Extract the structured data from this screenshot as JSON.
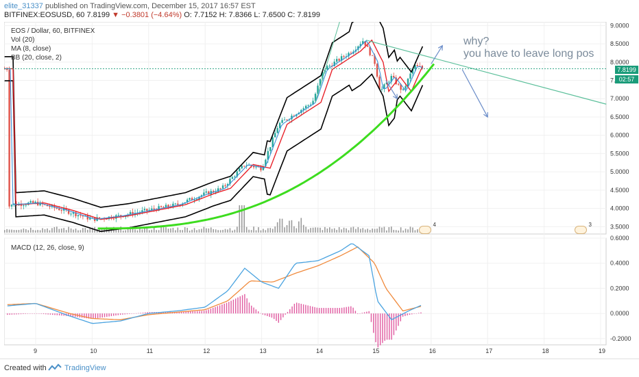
{
  "header": {
    "user": "elite_31337",
    "published": "published on TradingView.com, December 15, 2017 16:57 EST",
    "symbol": "BITFINEX:EOSUSD, 60",
    "last": "7.8199",
    "change": "▼ −0.3801 (−4.64%)",
    "ohlc": "O: 7.7152 H: 7.8366 L: 7.6500 C: 7.8199"
  },
  "legend": {
    "title": "EOS / Dollar, 60, BITFINEX",
    "vol": "Vol (20)",
    "ma": "MA (8, close)",
    "bb": "BB (20, close, 2)",
    "macd": "MACD (12, 26, close, 9)"
  },
  "annotation": {
    "line1": "why?",
    "line2": "you have to leave long pos"
  },
  "price_axis": {
    "ticks": [
      "9.0000",
      "8.5000",
      "8.0000",
      "7.5000",
      "7.0000",
      "6.5000",
      "6.0000",
      "5.5000",
      "5.0000",
      "4.5000",
      "4.0000",
      "3.5000"
    ],
    "last_tag": "7.8199",
    "timer_tag": "02:57"
  },
  "macd_axis": {
    "ticks": [
      "0.6000",
      "0.4000",
      "0.2000",
      "0.0000",
      "-0.2000"
    ]
  },
  "time_axis": {
    "ticks": [
      "9",
      "10",
      "11",
      "12",
      "13",
      "14",
      "15",
      "16",
      "17",
      "18",
      "19"
    ]
  },
  "flags": [
    "4",
    "3"
  ],
  "footer": {
    "created": "Created with",
    "brand": "TradingView"
  },
  "colors": {
    "up": "#26a69a",
    "down": "#e0534a",
    "ma": "#3a8fd8",
    "bb_mid": "#e8222a",
    "bb_band": "#000000",
    "green_curve": "#3ddc1f",
    "trendline": "#5bbf9a",
    "macd_line": "#4aa3e0",
    "signal_line": "#f08a3c",
    "hist": "#e05aa0",
    "arrow": "#6a8cc8"
  },
  "chart_data": [
    {
      "type": "line",
      "title": "EOS / Dollar, 60, BITFINEX",
      "x": [
        "9",
        "10",
        "11",
        "12",
        "13",
        "14",
        "15",
        "16"
      ],
      "series": [
        {
          "name": "BB (20, close, 2)",
          "values": [
            4.1,
            3.7,
            3.9,
            4.3,
            5.0,
            7.0,
            7.7,
            7.9
          ]
        },
        {
          "name": "MA (8, close)",
          "values": [
            4.15,
            3.85,
            3.95,
            4.5,
            5.5,
            7.5,
            7.8,
            7.82
          ]
        }
      ],
      "ylim": [
        3.3,
        9.1
      ]
    },
    {
      "type": "line",
      "title": "MACD (12, 26, close, 9)",
      "x": [
        "9",
        "10",
        "11",
        "12",
        "13",
        "14",
        "15",
        "16"
      ],
      "series": [
        {
          "name": "MACD",
          "values": [
            0.08,
            -0.07,
            0.0,
            0.05,
            0.35,
            0.52,
            0.08,
            0.07
          ]
        },
        {
          "name": "Signal",
          "values": [
            0.08,
            -0.03,
            0.0,
            0.04,
            0.25,
            0.5,
            0.2,
            0.07
          ]
        }
      ],
      "ylim": [
        -0.25,
        0.6
      ]
    }
  ]
}
